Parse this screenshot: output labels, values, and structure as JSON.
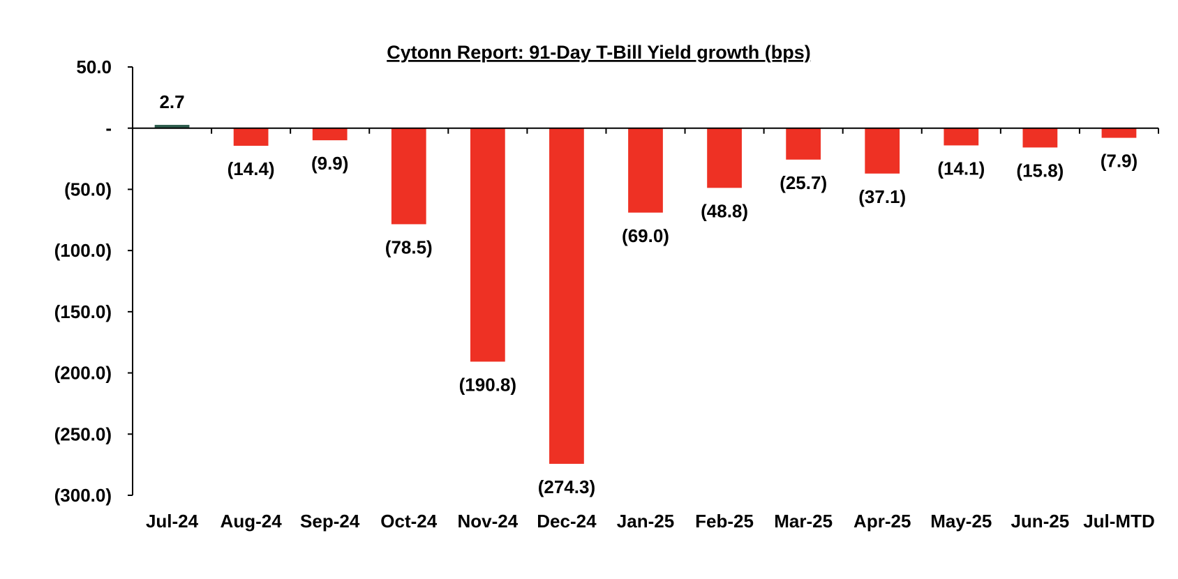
{
  "chart_data": {
    "type": "bar",
    "title": "Cytonn Report:  91-Day T-Bill Yield growth (bps)",
    "xlabel": "",
    "ylabel": "",
    "categories": [
      "Jul-24",
      "Aug-24",
      "Sep-24",
      "Oct-24",
      "Nov-24",
      "Dec-24",
      "Jan-25",
      "Feb-25",
      "Mar-25",
      "Apr-25",
      "May-25",
      "Jun-25",
      "Jul-MTD"
    ],
    "values": [
      2.7,
      -14.4,
      -9.9,
      -78.5,
      -190.8,
      -274.3,
      -69.0,
      -48.8,
      -25.7,
      -37.1,
      -14.1,
      -15.8,
      -7.9
    ],
    "data_labels": [
      "2.7",
      "(14.4)",
      "(9.9)",
      "(78.5)",
      "(190.8)",
      "(274.3)",
      "(69.0)",
      "(48.8)",
      "(25.7)",
      "(37.1)",
      "(14.1)",
      "(15.8)",
      "(7.9)"
    ],
    "ylim": [
      -300,
      50
    ],
    "yticks": [
      50,
      0,
      -50,
      -100,
      -150,
      -200,
      -250,
      -300
    ],
    "ytick_labels": [
      "50.0",
      "-",
      "(50.0)",
      "(100.0)",
      "(150.0)",
      "(200.0)",
      "(250.0)",
      "(300.0)"
    ],
    "grid": false,
    "legend": "none",
    "colors": {
      "positive": "#2e5e4e",
      "negative": "#ee3124"
    }
  }
}
